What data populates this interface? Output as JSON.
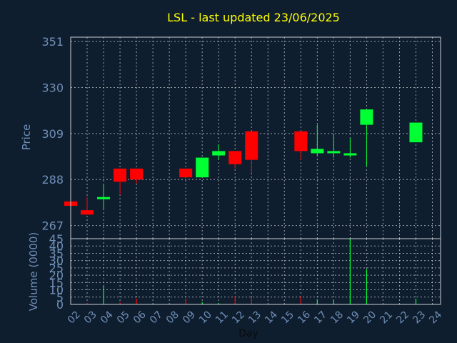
{
  "chart_data": {
    "type": "candlestick",
    "title": "LSL - last updated 23/06/2025",
    "ylabel": "Price",
    "ylabel_volume": "Volume (0000)",
    "xlabel": "Day",
    "grid": true,
    "price_ylim": [
      261,
      353
    ],
    "price_ticks": [
      "351",
      "330",
      "309",
      "288",
      "267"
    ],
    "volume_ylim": [
      0,
      45
    ],
    "volume_ticks": [
      "45",
      "40",
      "35",
      "30",
      "25",
      "20",
      "15",
      "10",
      "5",
      "0"
    ],
    "x_ticks": [
      "02",
      "03",
      "04",
      "05",
      "06",
      "07",
      "08",
      "09",
      "10",
      "11",
      "12",
      "13",
      "14",
      "15",
      "16",
      "17",
      "18",
      "19",
      "20",
      "21",
      "22",
      "23",
      "24"
    ],
    "colors": {
      "up": "#00ff33",
      "down": "#ff0000"
    },
    "candles": [
      {
        "day": "02",
        "open": 278,
        "close": 276,
        "high": 278,
        "low": 276,
        "volume": 0.3
      },
      {
        "day": "03",
        "open": 274,
        "close": 272,
        "high": 280,
        "low": 272,
        "volume": 1.0
      },
      {
        "day": "04",
        "open": 279,
        "close": 280,
        "high": 286,
        "low": 274,
        "volume": 12.5
      },
      {
        "day": "05",
        "open": 293,
        "close": 287,
        "high": 293,
        "low": 281,
        "volume": 1.5
      },
      {
        "day": "06",
        "open": 293,
        "close": 288,
        "high": 293,
        "low": 286,
        "volume": 4.0
      },
      {
        "day": "09",
        "open": 293,
        "close": 289,
        "high": 293,
        "low": 289,
        "volume": 4.0
      },
      {
        "day": "10",
        "open": 289,
        "close": 298,
        "high": 298,
        "low": 289,
        "volume": 1.5
      },
      {
        "day": "11",
        "open": 299,
        "close": 301,
        "high": 304,
        "low": 297,
        "volume": 1.0
      },
      {
        "day": "12",
        "open": 301,
        "close": 295,
        "high": 301,
        "low": 293,
        "volume": 5.5
      },
      {
        "day": "13",
        "open": 310,
        "close": 297,
        "high": 310,
        "low": 291,
        "volume": 5.0
      },
      {
        "day": "16",
        "open": 310,
        "close": 301,
        "high": 310,
        "low": 297,
        "volume": 5.5
      },
      {
        "day": "17",
        "open": 300,
        "close": 302,
        "high": 313,
        "low": 299,
        "volume": 3.5
      },
      {
        "day": "18",
        "open": 300,
        "close": 301,
        "high": 309,
        "low": 298,
        "volume": 3.0
      },
      {
        "day": "19",
        "open": 299,
        "close": 300,
        "high": 307,
        "low": 298,
        "volume": 45.0
      },
      {
        "day": "20",
        "open": 313,
        "close": 320,
        "high": 320,
        "low": 294,
        "volume": 24.0
      },
      {
        "day": "23",
        "open": 305,
        "close": 314,
        "high": 314,
        "low": 305,
        "volume": 4.0
      }
    ]
  }
}
